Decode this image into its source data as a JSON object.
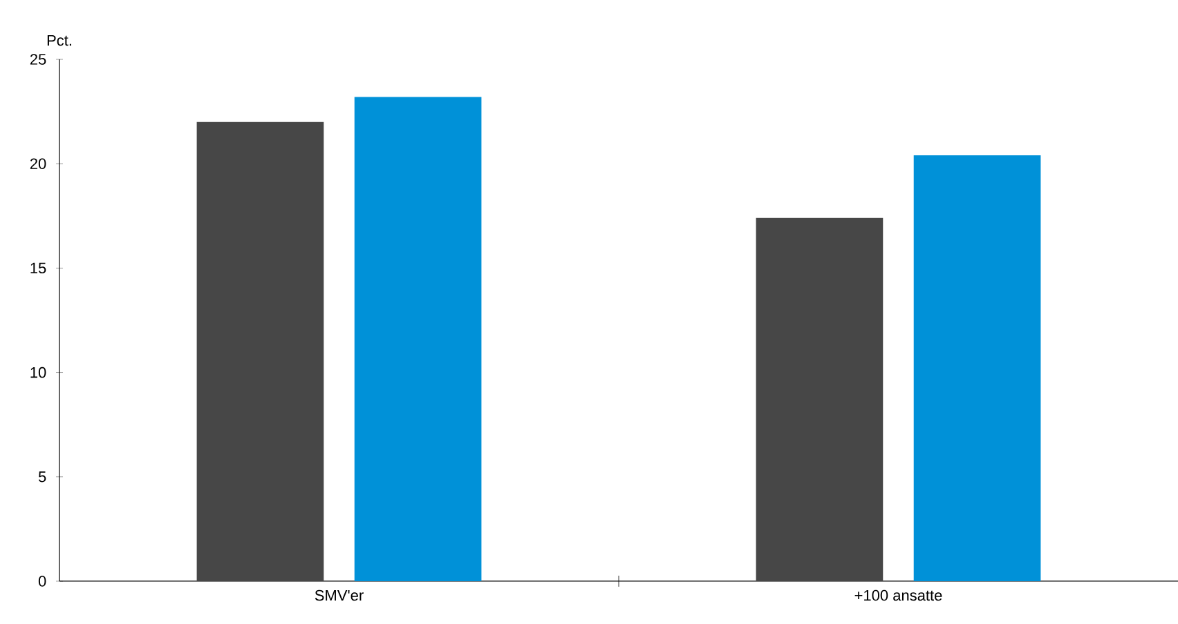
{
  "chart_data": {
    "type": "bar",
    "ylabel": "Pct.",
    "categories": [
      "SMV'er",
      "+100 ansatte"
    ],
    "series": [
      {
        "color": "#474747",
        "values": [
          22.0,
          17.4
        ]
      },
      {
        "color": "#0091d8",
        "values": [
          23.2,
          20.4
        ]
      }
    ],
    "ylim": [
      0,
      25
    ],
    "yticks": [
      0,
      5,
      10,
      15,
      20,
      25
    ],
    "grid": false
  }
}
